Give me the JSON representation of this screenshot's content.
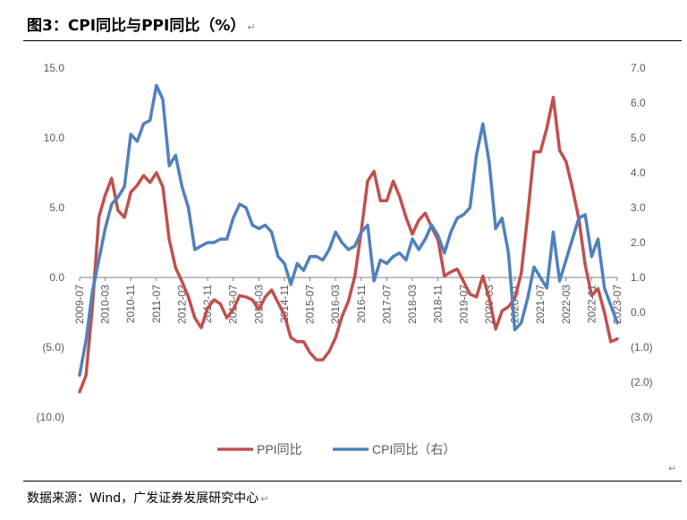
{
  "title": "图3：CPI同比与PPI同比（%）",
  "source": "数据来源：Wind，广发证券发展研究中心",
  "return_mark": "↵",
  "colors": {
    "ppi": "#C0504D",
    "cpi": "#4F81BD",
    "axis": "#000000",
    "text": "#595959"
  },
  "chart_data": {
    "type": "line",
    "title": "",
    "xlabel": "",
    "ylabel": "",
    "ylim": [
      -10,
      15
    ],
    "y2lim": [
      -3,
      7
    ],
    "left_tick_labels": [
      "15.0",
      "10.0",
      "5.0",
      "0.0",
      "(5.0)",
      "(10.0)"
    ],
    "right_tick_labels": [
      "7.0",
      "6.0",
      "5.0",
      "4.0",
      "3.0",
      "2.0",
      "1.0",
      "0.0",
      "(1.0)",
      "(2.0)",
      "(3.0)"
    ],
    "x_tick_labels": [
      "2009-07",
      "2010-03",
      "2010-11",
      "2011-07",
      "2012-03",
      "2012-11",
      "2013-07",
      "2014-03",
      "2014-11",
      "2015-07",
      "2016-03",
      "2016-11",
      "2017-07",
      "2018-03",
      "2018-11",
      "2019-07",
      "2020-03",
      "2020-11",
      "2021-07",
      "2022-03",
      "2022-11",
      "2023-07"
    ],
    "legend": {
      "placement": "bottom"
    },
    "series": [
      {
        "name": "PPI同比",
        "axis": "left",
        "color": "#C0504D",
        "points": [
          [
            "2009-07",
            -8.2
          ],
          [
            "2009-09",
            -7.0
          ],
          [
            "2009-11",
            -2.1
          ],
          [
            "2010-01",
            4.3
          ],
          [
            "2010-03",
            5.9
          ],
          [
            "2010-05",
            7.1
          ],
          [
            "2010-07",
            4.8
          ],
          [
            "2010-09",
            4.3
          ],
          [
            "2010-11",
            6.1
          ],
          [
            "2011-01",
            6.6
          ],
          [
            "2011-03",
            7.3
          ],
          [
            "2011-05",
            6.8
          ],
          [
            "2011-07",
            7.5
          ],
          [
            "2011-09",
            6.5
          ],
          [
            "2011-11",
            2.7
          ],
          [
            "2012-01",
            0.7
          ],
          [
            "2012-03",
            -0.3
          ],
          [
            "2012-05",
            -1.4
          ],
          [
            "2012-07",
            -2.9
          ],
          [
            "2012-09",
            -3.6
          ],
          [
            "2012-11",
            -2.2
          ],
          [
            "2013-01",
            -1.6
          ],
          [
            "2013-03",
            -1.9
          ],
          [
            "2013-05",
            -2.9
          ],
          [
            "2013-07",
            -2.3
          ],
          [
            "2013-09",
            -1.3
          ],
          [
            "2013-11",
            -1.4
          ],
          [
            "2014-01",
            -1.6
          ],
          [
            "2014-03",
            -2.3
          ],
          [
            "2014-05",
            -1.4
          ],
          [
            "2014-07",
            -0.9
          ],
          [
            "2014-09",
            -1.8
          ],
          [
            "2014-11",
            -2.7
          ],
          [
            "2015-01",
            -4.3
          ],
          [
            "2015-03",
            -4.6
          ],
          [
            "2015-05",
            -4.6
          ],
          [
            "2015-07",
            -5.4
          ],
          [
            "2015-09",
            -5.9
          ],
          [
            "2015-11",
            -5.9
          ],
          [
            "2016-01",
            -5.3
          ],
          [
            "2016-03",
            -4.3
          ],
          [
            "2016-05",
            -2.8
          ],
          [
            "2016-07",
            -1.7
          ],
          [
            "2016-09",
            0.1
          ],
          [
            "2016-11",
            3.3
          ],
          [
            "2017-01",
            6.9
          ],
          [
            "2017-03",
            7.6
          ],
          [
            "2017-05",
            5.5
          ],
          [
            "2017-07",
            5.5
          ],
          [
            "2017-09",
            6.9
          ],
          [
            "2017-11",
            5.8
          ],
          [
            "2018-01",
            4.3
          ],
          [
            "2018-03",
            3.1
          ],
          [
            "2018-05",
            4.1
          ],
          [
            "2018-07",
            4.6
          ],
          [
            "2018-09",
            3.6
          ],
          [
            "2018-11",
            2.7
          ],
          [
            "2019-01",
            0.1
          ],
          [
            "2019-03",
            0.4
          ],
          [
            "2019-05",
            0.6
          ],
          [
            "2019-07",
            -0.3
          ],
          [
            "2019-09",
            -1.2
          ],
          [
            "2019-11",
            -1.4
          ],
          [
            "2020-01",
            0.1
          ],
          [
            "2020-03",
            -1.5
          ],
          [
            "2020-05",
            -3.7
          ],
          [
            "2020-07",
            -2.4
          ],
          [
            "2020-09",
            -2.1
          ],
          [
            "2020-11",
            -1.5
          ],
          [
            "2021-01",
            0.3
          ],
          [
            "2021-03",
            4.4
          ],
          [
            "2021-05",
            9.0
          ],
          [
            "2021-07",
            9.0
          ],
          [
            "2021-09",
            10.7
          ],
          [
            "2021-11",
            12.9
          ],
          [
            "2022-01",
            9.1
          ],
          [
            "2022-03",
            8.3
          ],
          [
            "2022-05",
            6.4
          ],
          [
            "2022-07",
            4.2
          ],
          [
            "2022-09",
            0.9
          ],
          [
            "2022-11",
            -1.3
          ],
          [
            "2023-01",
            -0.8
          ],
          [
            "2023-03",
            -2.5
          ],
          [
            "2023-05",
            -4.6
          ],
          [
            "2023-07",
            -4.4
          ]
        ]
      },
      {
        "name": "CPI同比（右）",
        "axis": "right",
        "color": "#4F81BD",
        "points": [
          [
            "2009-07",
            -1.8
          ],
          [
            "2009-09",
            -0.8
          ],
          [
            "2009-11",
            0.6
          ],
          [
            "2010-01",
            1.5
          ],
          [
            "2010-03",
            2.4
          ],
          [
            "2010-05",
            3.1
          ],
          [
            "2010-07",
            3.3
          ],
          [
            "2010-09",
            3.6
          ],
          [
            "2010-11",
            5.1
          ],
          [
            "2011-01",
            4.9
          ],
          [
            "2011-03",
            5.4
          ],
          [
            "2011-05",
            5.5
          ],
          [
            "2011-07",
            6.5
          ],
          [
            "2011-09",
            6.1
          ],
          [
            "2011-11",
            4.2
          ],
          [
            "2012-01",
            4.5
          ],
          [
            "2012-03",
            3.6
          ],
          [
            "2012-05",
            3.0
          ],
          [
            "2012-07",
            1.8
          ],
          [
            "2012-09",
            1.9
          ],
          [
            "2012-11",
            2.0
          ],
          [
            "2013-01",
            2.0
          ],
          [
            "2013-03",
            2.1
          ],
          [
            "2013-05",
            2.1
          ],
          [
            "2013-07",
            2.7
          ],
          [
            "2013-09",
            3.1
          ],
          [
            "2013-11",
            3.0
          ],
          [
            "2014-01",
            2.5
          ],
          [
            "2014-03",
            2.4
          ],
          [
            "2014-05",
            2.5
          ],
          [
            "2014-07",
            2.3
          ],
          [
            "2014-09",
            1.6
          ],
          [
            "2014-11",
            1.4
          ],
          [
            "2015-01",
            0.8
          ],
          [
            "2015-03",
            1.4
          ],
          [
            "2015-05",
            1.2
          ],
          [
            "2015-07",
            1.6
          ],
          [
            "2015-09",
            1.6
          ],
          [
            "2015-11",
            1.5
          ],
          [
            "2016-01",
            1.8
          ],
          [
            "2016-03",
            2.3
          ],
          [
            "2016-05",
            2.0
          ],
          [
            "2016-07",
            1.8
          ],
          [
            "2016-09",
            1.9
          ],
          [
            "2016-11",
            2.3
          ],
          [
            "2017-01",
            2.5
          ],
          [
            "2017-03",
            0.9
          ],
          [
            "2017-05",
            1.5
          ],
          [
            "2017-07",
            1.4
          ],
          [
            "2017-09",
            1.6
          ],
          [
            "2017-11",
            1.7
          ],
          [
            "2018-01",
            1.5
          ],
          [
            "2018-03",
            2.1
          ],
          [
            "2018-05",
            1.8
          ],
          [
            "2018-07",
            2.1
          ],
          [
            "2018-09",
            2.5
          ],
          [
            "2018-11",
            2.2
          ],
          [
            "2019-01",
            1.7
          ],
          [
            "2019-03",
            2.3
          ],
          [
            "2019-05",
            2.7
          ],
          [
            "2019-07",
            2.8
          ],
          [
            "2019-09",
            3.0
          ],
          [
            "2019-11",
            4.5
          ],
          [
            "2020-01",
            5.4
          ],
          [
            "2020-03",
            4.3
          ],
          [
            "2020-05",
            2.4
          ],
          [
            "2020-07",
            2.7
          ],
          [
            "2020-09",
            1.7
          ],
          [
            "2020-11",
            -0.5
          ],
          [
            "2021-01",
            -0.3
          ],
          [
            "2021-03",
            0.4
          ],
          [
            "2021-05",
            1.3
          ],
          [
            "2021-07",
            1.0
          ],
          [
            "2021-09",
            0.7
          ],
          [
            "2021-11",
            2.3
          ],
          [
            "2022-01",
            0.9
          ],
          [
            "2022-03",
            1.5
          ],
          [
            "2022-05",
            2.1
          ],
          [
            "2022-07",
            2.7
          ],
          [
            "2022-09",
            2.8
          ],
          [
            "2022-11",
            1.6
          ],
          [
            "2023-01",
            2.1
          ],
          [
            "2023-03",
            0.7
          ],
          [
            "2023-05",
            0.2
          ],
          [
            "2023-07",
            -0.3
          ]
        ]
      }
    ]
  }
}
